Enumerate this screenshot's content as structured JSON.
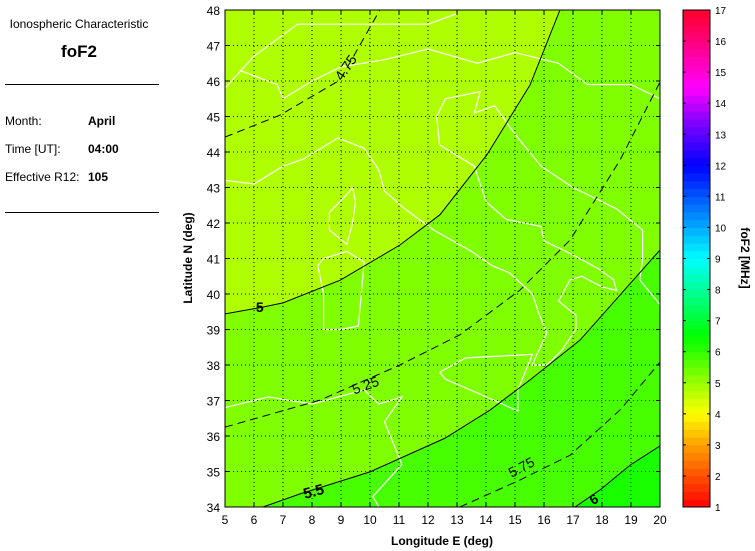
{
  "panel": {
    "heading": "Ionospheric Characteristic",
    "parameter": "foF2",
    "fields": [
      {
        "label": "Month:",
        "value": "April"
      },
      {
        "label": "Time [UT]:",
        "value": "04:00"
      },
      {
        "label": "Effective R12:",
        "value": "105"
      }
    ]
  },
  "chart_data": {
    "type": "contour-map",
    "xlabel": "Longitude E (deg)",
    "ylabel": "Latitude N (deg)",
    "xlim": [
      5,
      20
    ],
    "ylim": [
      34,
      48
    ],
    "xticks": [
      "5",
      "6",
      "7",
      "8",
      "9",
      "10",
      "11",
      "12",
      "13",
      "14",
      "15",
      "16",
      "17",
      "18",
      "19",
      "20"
    ],
    "yticks": [
      "34",
      "35",
      "36",
      "37",
      "38",
      "39",
      "40",
      "41",
      "42",
      "43",
      "44",
      "45",
      "46",
      "47",
      "48"
    ],
    "grid": true,
    "colorbar": {
      "label": "foF2 [MHz]",
      "range": [
        1,
        17
      ],
      "ticks": [
        "1",
        "2",
        "3",
        "4",
        "5",
        "6",
        "7",
        "8",
        "9",
        "10",
        "11",
        "12",
        "13",
        "14",
        "15",
        "16",
        "17"
      ]
    },
    "band_colors": {
      "<5": "#b0ff00",
      "5-5.5": "#80ff00",
      "5.5-6": "#48ff00",
      ">6": "#18ff00"
    },
    "coastline_color": "#ffffff",
    "contours": [
      {
        "level": 4.75,
        "label": "4.75",
        "style": "dashed",
        "points": [
          [
            5,
            44.42
          ],
          [
            6.9,
            45.04
          ],
          [
            8.97,
            46.03
          ],
          [
            10.34,
            48
          ]
        ]
      },
      {
        "level": 5,
        "label": "5",
        "style": "solid",
        "points": [
          [
            5,
            39.44
          ],
          [
            6.17,
            39.61
          ],
          [
            7,
            39.75
          ],
          [
            8.97,
            40.39
          ],
          [
            11.03,
            41.38
          ],
          [
            12.41,
            42.23
          ],
          [
            14.03,
            43.92
          ],
          [
            15.52,
            45.89
          ],
          [
            16.55,
            48
          ]
        ]
      },
      {
        "level": 5.25,
        "label": "5.25",
        "style": "dashed",
        "points": [
          [
            5,
            36.25
          ],
          [
            8.28,
            37.01
          ],
          [
            11.03,
            38
          ],
          [
            13.1,
            38.85
          ],
          [
            15.17,
            40.11
          ],
          [
            16.9,
            41.52
          ],
          [
            18.62,
            43.77
          ],
          [
            20,
            45.97
          ]
        ]
      },
      {
        "level": 5.5,
        "label": "5.5",
        "style": "solid",
        "points": [
          [
            6.31,
            34
          ],
          [
            7.59,
            34.37
          ],
          [
            10,
            34.99
          ],
          [
            12.59,
            35.94
          ],
          [
            14.14,
            36.73
          ],
          [
            15.52,
            37.58
          ],
          [
            17.24,
            38.7
          ],
          [
            18.62,
            39.97
          ],
          [
            20,
            41.24
          ]
        ]
      },
      {
        "level": 5.75,
        "label": "5.75",
        "style": "dashed",
        "points": [
          [
            13.1,
            34
          ],
          [
            15.17,
            34.76
          ],
          [
            16.9,
            35.46
          ],
          [
            18.62,
            36.73
          ],
          [
            20,
            38.08
          ]
        ]
      },
      {
        "level": 6,
        "label": "6",
        "style": "solid",
        "points": [
          [
            17.07,
            34
          ],
          [
            17.93,
            34.48
          ],
          [
            18.97,
            35.18
          ],
          [
            20,
            35.72
          ]
        ]
      }
    ],
    "contour_labels": [
      {
        "text": "4.75",
        "lon": 9.3,
        "lat": 46.3,
        "angle": -55
      },
      {
        "text": "5",
        "lon": 6.2,
        "lat": 39.5,
        "angle": 0
      },
      {
        "text": "5.25",
        "lon": 9.9,
        "lat": 37.3,
        "angle": -20
      },
      {
        "text": "5.5",
        "lon": 8.1,
        "lat": 34.3,
        "angle": -15
      },
      {
        "text": "5.75",
        "lon": 15.3,
        "lat": 35.0,
        "angle": -28
      },
      {
        "text": "6",
        "lon": 17.8,
        "lat": 34.1,
        "angle": -30
      }
    ]
  }
}
